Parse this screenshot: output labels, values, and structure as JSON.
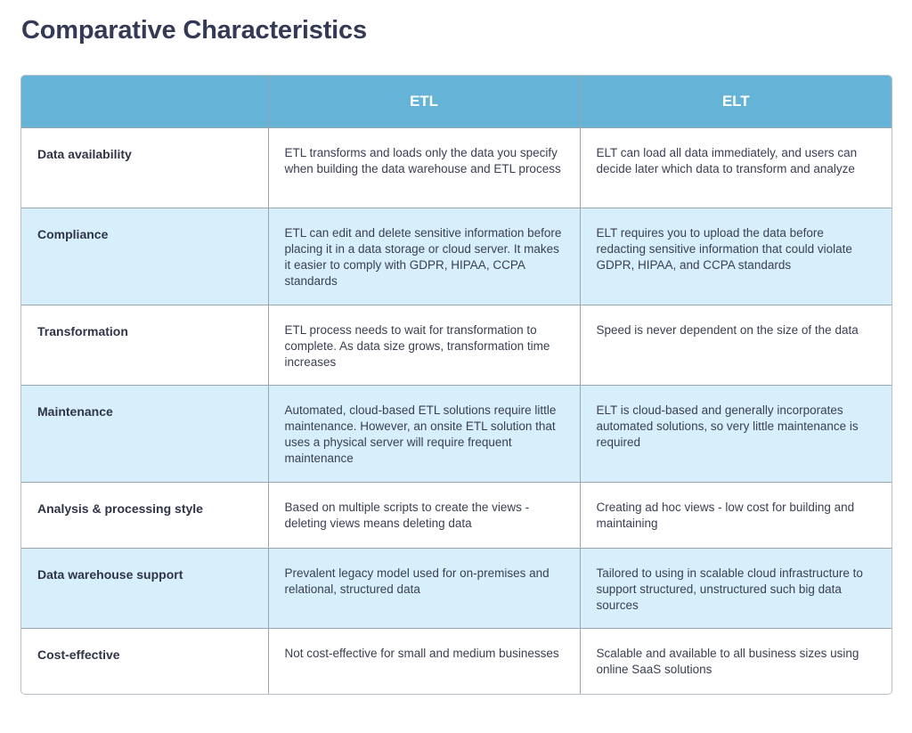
{
  "page": {
    "title": "Comparative Characteristics"
  },
  "table": {
    "headers": [
      "",
      "ETL",
      "ELT"
    ],
    "rows": [
      {
        "label": "Data availability",
        "etl": "ETL transforms and loads only the data you specify when building the data warehouse and ETL process",
        "elt": "ELT can load all data immediately, and users can decide later which data to transform and analyze"
      },
      {
        "label": "Compliance",
        "etl": "ETL can edit and delete sensitive information before placing it in a data storage or cloud server. It makes it easier to comply with GDPR, HIPAA, CCPA standards",
        "elt": "ELT requires you to upload the data before redacting sensitive information that could violate GDPR, HIPAA, and CCPA standards"
      },
      {
        "label": "Transformation",
        "etl": "ETL process needs to wait for transformation to complete. As data size grows, transformation time increases",
        "elt": "Speed is never dependent on the size of the data"
      },
      {
        "label": "Maintenance",
        "etl": "Automated, cloud-based ETL solutions require little maintenance. However, an onsite ETL solution that uses a physical server will require frequent maintenance",
        "elt": "ELT is cloud-based and generally incorporates automated solutions, so very little maintenance is required"
      },
      {
        "label": "Analysis & processing style",
        "etl": "Based on multiple scripts to create the views - deleting views means deleting data",
        "elt": "Creating ad hoc views - low cost for building and maintaining"
      },
      {
        "label": "Data warehouse support",
        "etl": "Prevalent legacy model used for on-premises and relational, structured data",
        "elt": "Tailored to using in scalable cloud infrastructure to support structured, unstructured such big data sources"
      },
      {
        "label": "Cost-effective",
        "etl": "Not cost-effective for small and medium businesses",
        "elt": "Scalable and available to all business sizes using online SaaS solutions"
      }
    ]
  },
  "colors": {
    "header_bg": "#65b3d6",
    "alt_row_bg": "#d6effa",
    "title_text": "#343a55"
  }
}
